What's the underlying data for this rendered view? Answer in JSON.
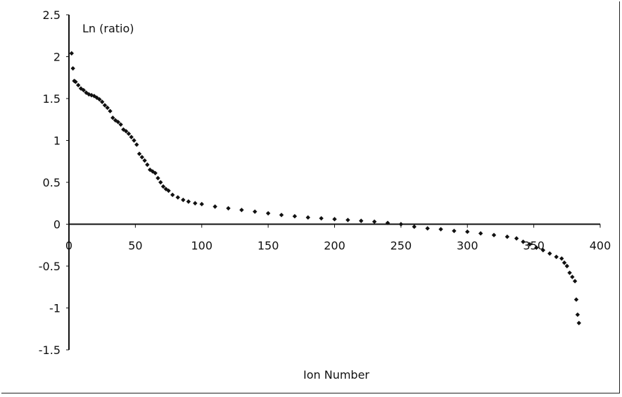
{
  "chart_data": {
    "type": "scatter",
    "title": "",
    "xlabel": "Ion Number",
    "ylabel": "Ln (ratio)",
    "xlim": [
      0,
      400
    ],
    "ylim": [
      -1.5,
      2.5
    ],
    "xticks": [
      "0",
      "50",
      "100",
      "150",
      "200",
      "250",
      "300",
      "350",
      "400"
    ],
    "yticks": [
      "2.5",
      "2",
      "1.5",
      "1",
      "0.5",
      "0",
      "-0.5",
      "-1",
      "-1.5"
    ],
    "grid": false,
    "legend": "none",
    "marker_color": "#111111",
    "series": [
      {
        "name": "Ln (ratio)",
        "points": [
          [
            2,
            2.04
          ],
          [
            3,
            1.86
          ],
          [
            4,
            1.71
          ],
          [
            5,
            1.7
          ],
          [
            7,
            1.66
          ],
          [
            9,
            1.62
          ],
          [
            11,
            1.6
          ],
          [
            13,
            1.57
          ],
          [
            15,
            1.55
          ],
          [
            17,
            1.54
          ],
          [
            19,
            1.53
          ],
          [
            21,
            1.51
          ],
          [
            23,
            1.49
          ],
          [
            25,
            1.46
          ],
          [
            27,
            1.42
          ],
          [
            29,
            1.39
          ],
          [
            31,
            1.35
          ],
          [
            33,
            1.27
          ],
          [
            35,
            1.24
          ],
          [
            37,
            1.22
          ],
          [
            39,
            1.19
          ],
          [
            41,
            1.13
          ],
          [
            43,
            1.11
          ],
          [
            45,
            1.08
          ],
          [
            47,
            1.04
          ],
          [
            49,
            1.0
          ],
          [
            51,
            0.95
          ],
          [
            53,
            0.84
          ],
          [
            55,
            0.8
          ],
          [
            57,
            0.76
          ],
          [
            59,
            0.71
          ],
          [
            61,
            0.65
          ],
          [
            63,
            0.63
          ],
          [
            65,
            0.61
          ],
          [
            67,
            0.55
          ],
          [
            69,
            0.5
          ],
          [
            71,
            0.45
          ],
          [
            73,
            0.42
          ],
          [
            75,
            0.4
          ],
          [
            78,
            0.35
          ],
          [
            82,
            0.32
          ],
          [
            86,
            0.29
          ],
          [
            90,
            0.27
          ],
          [
            95,
            0.25
          ],
          [
            100,
            0.24
          ],
          [
            110,
            0.21
          ],
          [
            120,
            0.19
          ],
          [
            130,
            0.17
          ],
          [
            140,
            0.15
          ],
          [
            150,
            0.13
          ],
          [
            160,
            0.11
          ],
          [
            170,
            0.095
          ],
          [
            180,
            0.08
          ],
          [
            190,
            0.07
          ],
          [
            200,
            0.06
          ],
          [
            210,
            0.05
          ],
          [
            220,
            0.04
          ],
          [
            230,
            0.03
          ],
          [
            240,
            0.015
          ],
          [
            250,
            0.0
          ],
          [
            260,
            -0.03
          ],
          [
            270,
            -0.05
          ],
          [
            280,
            -0.06
          ],
          [
            290,
            -0.08
          ],
          [
            300,
            -0.09
          ],
          [
            310,
            -0.11
          ],
          [
            320,
            -0.13
          ],
          [
            330,
            -0.15
          ],
          [
            337,
            -0.17
          ],
          [
            342,
            -0.21
          ],
          [
            347,
            -0.24
          ],
          [
            352,
            -0.28
          ],
          [
            357,
            -0.31
          ],
          [
            362,
            -0.35
          ],
          [
            367,
            -0.39
          ],
          [
            371,
            -0.41
          ],
          [
            373,
            -0.46
          ],
          [
            375,
            -0.5
          ],
          [
            377,
            -0.58
          ],
          [
            379,
            -0.63
          ],
          [
            381,
            -0.68
          ],
          [
            382,
            -0.9
          ],
          [
            383,
            -1.08
          ],
          [
            384,
            -1.18
          ]
        ]
      }
    ]
  }
}
